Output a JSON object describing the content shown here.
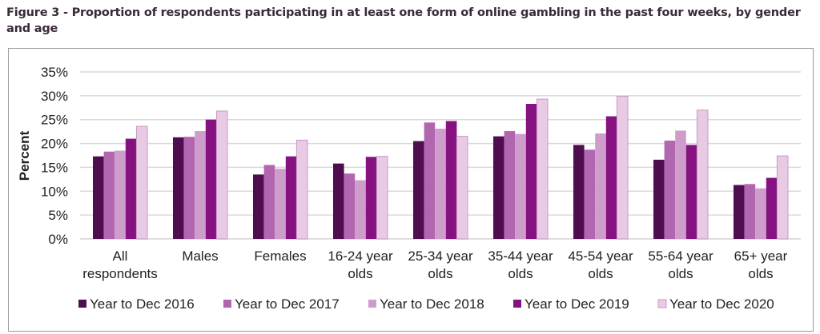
{
  "figure": {
    "title": "Figure 3 - Proportion of respondents participating in at least one form of online gambling in the past four weeks, by gender and age"
  },
  "chart_data": {
    "type": "bar",
    "title": "Figure 3 - Proportion of respondents participating in at least one form of online gambling in the past four weeks, by gender and age",
    "xlabel": "",
    "ylabel": "Percent",
    "ylim": [
      0,
      35
    ],
    "yticks": [
      "0%",
      "5%",
      "10%",
      "15%",
      "20%",
      "25%",
      "30%",
      "35%"
    ],
    "grid": true,
    "legend_position": "bottom",
    "categories": [
      [
        "All",
        "respondents"
      ],
      [
        "Males"
      ],
      [
        "Females"
      ],
      [
        "16-24 year",
        "olds"
      ],
      [
        "25-34 year",
        "olds"
      ],
      [
        "35-44 year",
        "olds"
      ],
      [
        "45-54 year",
        "olds"
      ],
      [
        "55-64 year",
        "olds"
      ],
      [
        "65+ year",
        "olds"
      ]
    ],
    "series": [
      {
        "name": "Year to Dec 2016",
        "color": "#4f0d4f",
        "values": [
          17.3,
          21.3,
          13.5,
          15.8,
          20.5,
          21.5,
          19.7,
          16.6,
          11.3
        ]
      },
      {
        "name": "Year to Dec 2017",
        "color": "#b266b0",
        "values": [
          18.3,
          21.4,
          15.5,
          13.7,
          24.4,
          22.6,
          18.7,
          20.6,
          11.5
        ]
      },
      {
        "name": "Year to Dec 2018",
        "color": "#cf9dcc",
        "values": [
          18.5,
          22.6,
          14.7,
          12.3,
          23.1,
          22.0,
          22.1,
          22.7,
          10.6
        ]
      },
      {
        "name": "Year to Dec 2019",
        "color": "#861180",
        "values": [
          21.0,
          25.0,
          17.3,
          17.2,
          24.7,
          28.3,
          25.7,
          19.7,
          12.8
        ]
      },
      {
        "name": "Year to Dec 2020",
        "color": "#e8cae5",
        "values": [
          23.6,
          26.8,
          20.7,
          17.3,
          21.5,
          29.3,
          29.9,
          27.0,
          17.4
        ]
      }
    ]
  }
}
